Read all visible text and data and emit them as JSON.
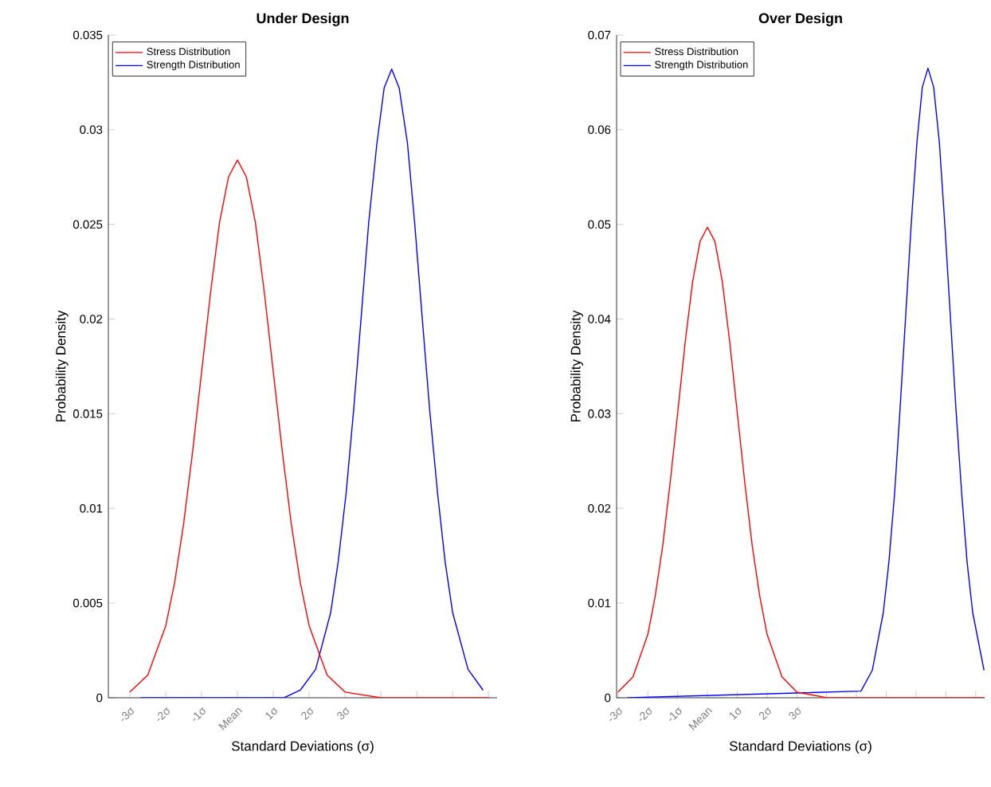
{
  "chart_data": [
    {
      "type": "line",
      "title": "Under Design",
      "xlabel": "Standard Deviations (σ)",
      "ylabel": "Probability Density",
      "legend": "top left",
      "xlim": [
        -3.6,
        7.24
      ],
      "xticks": [
        {
          "value": -3,
          "label": "-3σ"
        },
        {
          "value": -2,
          "label": "-2σ"
        },
        {
          "value": -1,
          "label": "-1σ"
        },
        {
          "value": 0,
          "label": "Mean"
        },
        {
          "value": 1,
          "label": "1σ"
        },
        {
          "value": 2,
          "label": "2σ"
        },
        {
          "value": 3,
          "label": "3σ"
        },
        {
          "value": 4,
          "label": null
        },
        {
          "value": 5,
          "label": null
        },
        {
          "value": 6,
          "label": null
        },
        {
          "value": 7,
          "label": null
        }
      ],
      "ylim": [
        0,
        0.035
      ],
      "yticks": [
        0,
        0.005,
        0.01,
        0.015,
        0.02,
        0.025,
        0.03,
        0.035
      ],
      "series": [
        {
          "name": "Stress Distribution",
          "color": "#ff0000",
          "x": [
            -3,
            -2.5,
            -2,
            -1.75,
            -1.5,
            -1.25,
            -1,
            -0.75,
            -0.5,
            -0.25,
            0,
            0.25,
            0.5,
            0.75,
            1,
            1.25,
            1.5,
            1.75,
            2,
            2.5,
            3,
            4,
            5,
            6,
            7.0
          ],
          "values": [
            0.0003,
            0.0012,
            0.0038,
            0.0061,
            0.0092,
            0.013,
            0.0172,
            0.0214,
            0.0251,
            0.0275,
            0.0284,
            0.0275,
            0.0251,
            0.0214,
            0.0172,
            0.013,
            0.0092,
            0.0061,
            0.0038,
            0.0012,
            0.0003,
            0,
            0,
            0,
            0
          ]
        },
        {
          "name": "Strength Distribution",
          "color": "#0000ff",
          "x": [
            -2.7,
            1.3,
            1.75,
            2.18,
            2.6,
            2.81,
            3.03,
            3.24,
            3.45,
            3.66,
            3.89,
            4.09,
            4.3,
            4.51,
            4.74,
            4.94,
            5.15,
            5.36,
            5.58,
            5.79,
            6.0,
            6.43,
            6.85
          ],
          "values": [
            0,
            0,
            0.0004,
            0.0015,
            0.0045,
            0.0072,
            0.0108,
            0.0152,
            0.0201,
            0.0251,
            0.0293,
            0.0322,
            0.0332,
            0.0322,
            0.0293,
            0.0251,
            0.0201,
            0.0152,
            0.0108,
            0.0072,
            0.0045,
            0.0015,
            0.0004
          ]
        }
      ]
    },
    {
      "type": "line",
      "title": "Over Design",
      "xlabel": "Standard Deviations (σ)",
      "ylabel": "Probability Density",
      "legend": "top left",
      "xlim": [
        -3.05,
        9.3
      ],
      "xticks": [
        {
          "value": -3,
          "label": "-3σ"
        },
        {
          "value": -2,
          "label": "-2σ"
        },
        {
          "value": -1,
          "label": "-1σ"
        },
        {
          "value": 0,
          "label": "Mean"
        },
        {
          "value": 1,
          "label": "1σ"
        },
        {
          "value": 2,
          "label": "2σ"
        },
        {
          "value": 3,
          "label": "3σ"
        },
        {
          "value": 4,
          "label": null
        },
        {
          "value": 5,
          "label": null
        },
        {
          "value": 6,
          "label": null
        },
        {
          "value": 7,
          "label": null
        },
        {
          "value": 8,
          "label": null
        },
        {
          "value": 9,
          "label": null
        }
      ],
      "ylim": [
        0,
        0.07
      ],
      "yticks": [
        0,
        0.01,
        0.02,
        0.03,
        0.04,
        0.05,
        0.06,
        0.07
      ],
      "series": [
        {
          "name": "Stress Distribution",
          "color": "#ff0000",
          "x": [
            -3,
            -2.5,
            -2,
            -1.75,
            -1.5,
            -1.25,
            -1,
            -0.75,
            -0.5,
            -0.25,
            0,
            0.25,
            0.5,
            0.75,
            1,
            1.25,
            1.5,
            1.75,
            2,
            2.5,
            3,
            4,
            6,
            8,
            9.3
          ],
          "values": [
            0.0006,
            0.0022,
            0.0067,
            0.0108,
            0.0161,
            0.0228,
            0.0301,
            0.0375,
            0.0439,
            0.0482,
            0.0497,
            0.0482,
            0.0439,
            0.0375,
            0.0301,
            0.0228,
            0.0161,
            0.0108,
            0.0067,
            0.0022,
            0.0006,
            0,
            0,
            0,
            0
          ]
        },
        {
          "name": "Strength Distribution",
          "color": "#0000ff",
          "x": [
            -2.7,
            5.15,
            5.53,
            5.9,
            6.09,
            6.28,
            6.46,
            6.65,
            6.84,
            7.03,
            7.21,
            7.4,
            7.59,
            7.78,
            7.96,
            8.15,
            8.34,
            8.53,
            8.71,
            8.9,
            9.28
          ],
          "values": [
            0,
            0.0007,
            0.0029,
            0.009,
            0.0144,
            0.0216,
            0.0304,
            0.0403,
            0.0502,
            0.0587,
            0.0645,
            0.0665,
            0.0645,
            0.0587,
            0.0502,
            0.0403,
            0.0304,
            0.0216,
            0.0144,
            0.009,
            0.0029
          ]
        }
      ]
    }
  ]
}
